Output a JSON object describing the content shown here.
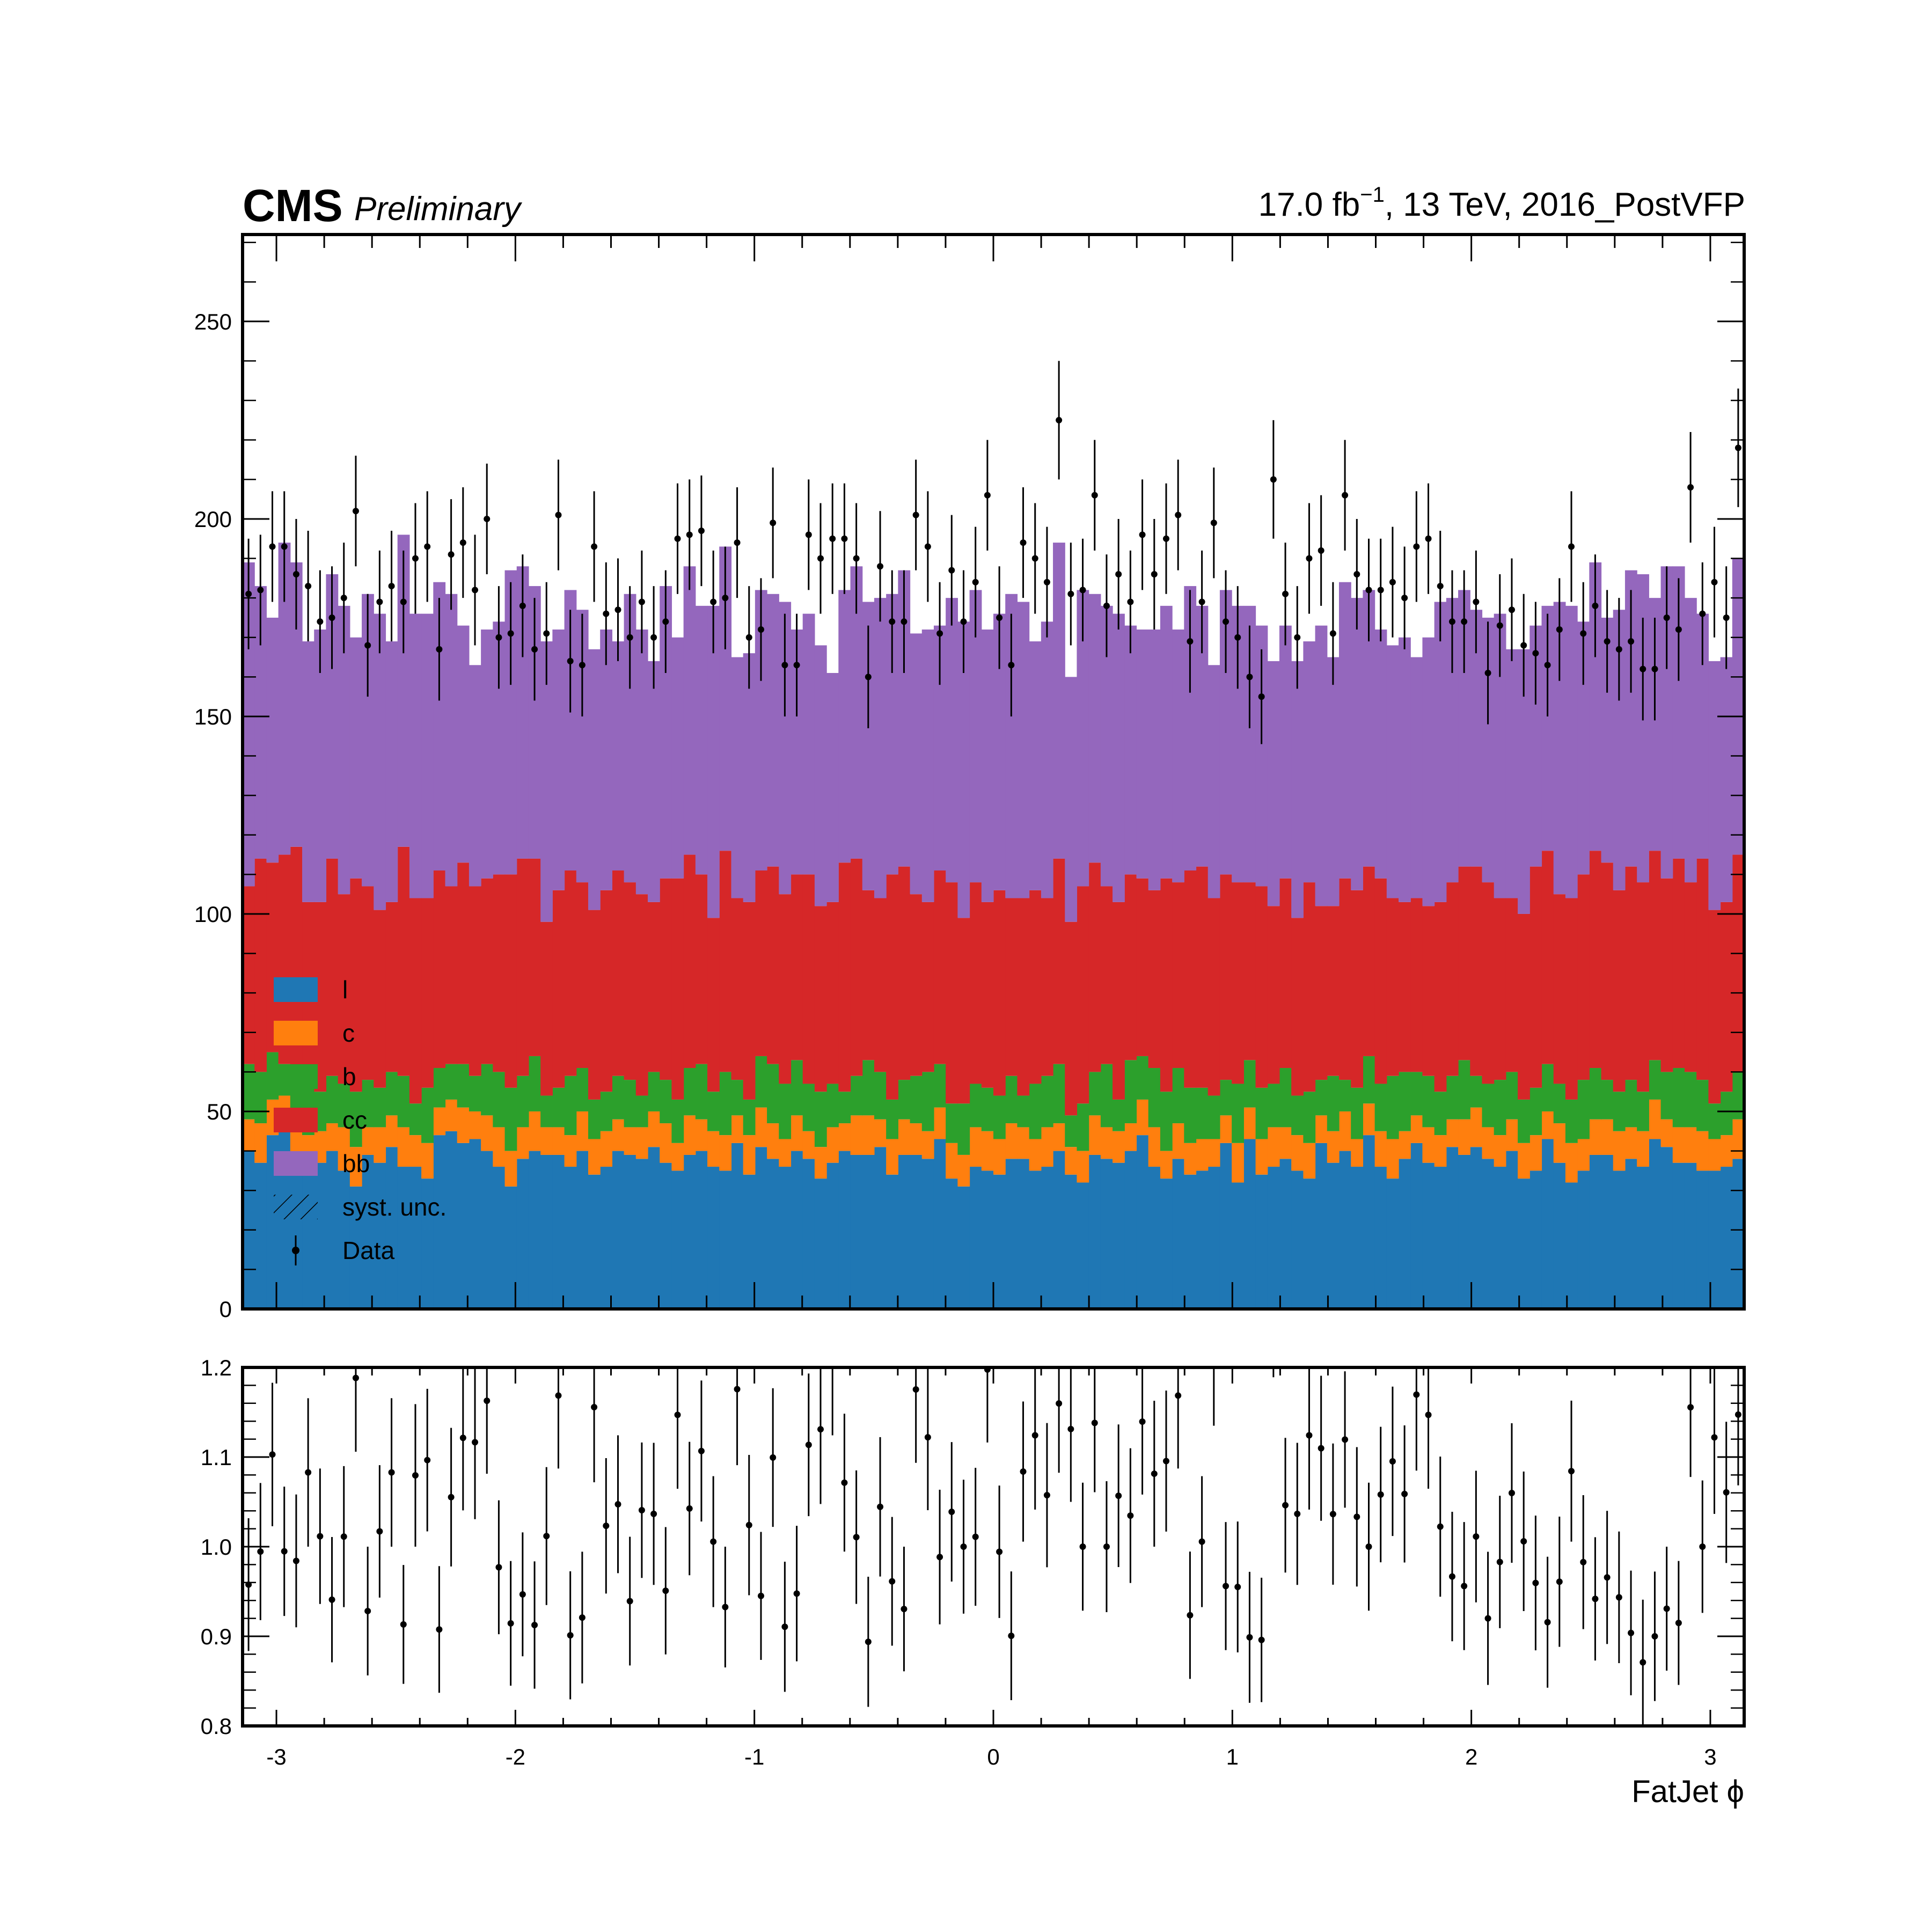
{
  "header": {
    "cms_label": "CMS",
    "preliminary_label": "Preliminary",
    "lumi_prefix": "17.0 fb",
    "lumi_exponent": "−1",
    "lumi_suffix": ", 13 TeV, 2016_PostVFP"
  },
  "chart_data": [
    {
      "type": "bar",
      "stacked": true,
      "panel": "main",
      "xlabel": "FatJet ϕ",
      "ylabel": "",
      "xlim": [
        -3.1416,
        3.1416
      ],
      "ylim": [
        0,
        272
      ],
      "yticks": [
        0,
        50,
        100,
        150,
        200,
        250
      ],
      "yticklabels": [
        "0",
        "50",
        "100",
        "150",
        "200",
        "250"
      ],
      "legend_position": "lower-left",
      "legend": [
        {
          "label": "l",
          "kind": "fill",
          "color": "#1f77b4"
        },
        {
          "label": "c",
          "kind": "fill",
          "color": "#ff7f0e"
        },
        {
          "label": "b",
          "kind": "fill",
          "color": "#2ca02c"
        },
        {
          "label": "cc",
          "kind": "fill",
          "color": "#d62728"
        },
        {
          "label": "bb",
          "kind": "fill",
          "color": "#9467bd"
        },
        {
          "label": "syst. unc.",
          "kind": "hatch",
          "color": "#000000"
        },
        {
          "label": "Data",
          "kind": "errorbar",
          "color": "#000000"
        }
      ],
      "bins": 126,
      "bin_width": 0.04987,
      "series": [
        {
          "name": "l",
          "color": "#1f77b4",
          "values": [
            40,
            37,
            44,
            47,
            39,
            36,
            37,
            40,
            35,
            31,
            39,
            37,
            41,
            36,
            36,
            33,
            44,
            45,
            42,
            43,
            40,
            36,
            31,
            38,
            40,
            39,
            39,
            36,
            40,
            34,
            36,
            40,
            39,
            38,
            41,
            37,
            35,
            39,
            40,
            36,
            35,
            42,
            34,
            41,
            38,
            36,
            40,
            38,
            33,
            37,
            40,
            39,
            39,
            41,
            34,
            39,
            39,
            38,
            43,
            33,
            31,
            36,
            35,
            34,
            38,
            38,
            35,
            36,
            40,
            34,
            32,
            39,
            38,
            37,
            40,
            44,
            36,
            33,
            38,
            34,
            35,
            36,
            42,
            32,
            43,
            34,
            36,
            38,
            35,
            33,
            42,
            37,
            40,
            36,
            44,
            36,
            33,
            38,
            42,
            37,
            36,
            41,
            39,
            41,
            38,
            36,
            40,
            33,
            35,
            43,
            37,
            32,
            35,
            39,
            39,
            35,
            38,
            36,
            43,
            41,
            37,
            37,
            35,
            35,
            36,
            38
          ]
        },
        {
          "name": "c",
          "color": "#ff7f0e",
          "values": [
            8,
            10,
            9,
            7,
            9,
            8,
            8,
            7,
            11,
            10,
            7,
            9,
            8,
            10,
            8,
            9,
            7,
            8,
            9,
            7,
            9,
            10,
            9,
            8,
            10,
            7,
            7,
            8,
            10,
            9,
            9,
            8,
            7,
            8,
            9,
            10,
            7,
            10,
            8,
            9,
            9,
            7,
            10,
            10,
            9,
            7,
            9,
            7,
            8,
            9,
            7,
            10,
            10,
            7,
            9,
            9,
            8,
            7,
            8,
            9,
            8,
            10,
            10,
            9,
            9,
            8,
            8,
            10,
            7,
            7,
            8,
            10,
            8,
            8,
            7,
            9,
            10,
            7,
            9,
            8,
            8,
            7,
            7,
            10,
            8,
            9,
            10,
            8,
            9,
            9,
            7,
            8,
            10,
            7,
            8,
            9,
            10,
            7,
            7,
            9,
            8,
            7,
            9,
            10,
            8,
            8,
            8,
            9,
            9,
            7,
            10,
            10,
            8,
            9,
            9,
            10,
            8,
            9,
            10,
            7,
            9,
            9,
            10,
            8,
            8,
            10
          ]
        },
        {
          "name": "b",
          "color": "#2ca02c",
          "values": [
            14,
            13,
            12,
            8,
            13,
            14,
            10,
            12,
            11,
            14,
            12,
            10,
            11,
            13,
            8,
            14,
            10,
            9,
            11,
            9,
            13,
            14,
            16,
            13,
            14,
            8,
            10,
            15,
            11,
            10,
            10,
            11,
            12,
            8,
            10,
            11,
            11,
            12,
            14,
            10,
            16,
            9,
            9,
            13,
            15,
            14,
            14,
            12,
            14,
            11,
            8,
            10,
            14,
            12,
            10,
            10,
            12,
            15,
            11,
            10,
            13,
            11,
            11,
            11,
            12,
            8,
            14,
            13,
            15,
            8,
            12,
            11,
            16,
            8,
            16,
            11,
            15,
            15,
            14,
            14,
            13,
            11,
            9,
            15,
            12,
            13,
            11,
            15,
            10,
            13,
            9,
            14,
            8,
            13,
            12,
            12,
            16,
            15,
            11,
            13,
            11,
            11,
            15,
            8,
            11,
            14,
            12,
            11,
            12,
            12,
            10,
            11,
            15,
            13,
            10,
            10,
            12,
            10,
            10,
            12,
            15,
            14,
            13,
            9,
            11,
            12
          ]
        },
        {
          "name": "cc",
          "color": "#d62728",
          "values": [
            45,
            54,
            48,
            53,
            56,
            45,
            48,
            55,
            48,
            54,
            49,
            45,
            43,
            58,
            52,
            48,
            50,
            45,
            51,
            48,
            47,
            50,
            54,
            55,
            50,
            44,
            50,
            52,
            47,
            48,
            51,
            52,
            50,
            51,
            43,
            51,
            56,
            54,
            48,
            44,
            56,
            46,
            50,
            47,
            50,
            48,
            47,
            53,
            47,
            46,
            58,
            55,
            43,
            44,
            57,
            54,
            46,
            43,
            49,
            56,
            47,
            51,
            47,
            52,
            45,
            50,
            49,
            45,
            52,
            49,
            55,
            53,
            45,
            50,
            47,
            45,
            45,
            54,
            47,
            55,
            56,
            50,
            52,
            51,
            45,
            51,
            45,
            48,
            45,
            53,
            44,
            43,
            51,
            50,
            48,
            52,
            45,
            43,
            44,
            43,
            48,
            49,
            49,
            53,
            51,
            46,
            44,
            47,
            56,
            54,
            48,
            51,
            52,
            55,
            55,
            51,
            54,
            53,
            53,
            49,
            53,
            48,
            56,
            49,
            48,
            55
          ]
        },
        {
          "name": "bb",
          "color": "#9467bd",
          "values": [
            82,
            69,
            62,
            79,
            72,
            66,
            69,
            72,
            73,
            61,
            74,
            75,
            66,
            79,
            72,
            72,
            73,
            74,
            60,
            56,
            63,
            64,
            77,
            74,
            69,
            71,
            66,
            71,
            69,
            66,
            66,
            58,
            73,
            67,
            61,
            74,
            61,
            73,
            68,
            79,
            77,
            61,
            63,
            71,
            69,
            74,
            62,
            66,
            66,
            58,
            69,
            74,
            73,
            76,
            71,
            75,
            66,
            69,
            62,
            72,
            75,
            74,
            69,
            70,
            77,
            75,
            63,
            70,
            80,
            62,
            75,
            68,
            71,
            73,
            63,
            63,
            66,
            69,
            64,
            72,
            66,
            59,
            72,
            70,
            70,
            66,
            62,
            64,
            65,
            61,
            71,
            63,
            75,
            74,
            70,
            63,
            64,
            67,
            61,
            68,
            76,
            72,
            70,
            65,
            67,
            72,
            63,
            67,
            61,
            62,
            74,
            74,
            64,
            73,
            62,
            71,
            75,
            78,
            64,
            79,
            74,
            72,
            62,
            63,
            62,
            75
          ]
        }
      ],
      "data_points": {
        "label": "Data",
        "values": [
          181,
          182,
          193,
          193,
          186,
          183,
          174,
          175,
          180,
          202,
          168,
          179,
          183,
          179,
          190,
          193,
          167,
          191,
          194,
          182,
          200,
          170,
          171,
          178,
          167,
          171,
          201,
          164,
          163,
          193,
          176,
          177,
          170,
          179,
          170,
          174,
          195,
          196,
          197,
          179,
          180,
          194,
          170,
          172,
          199,
          163,
          163,
          196,
          190,
          195,
          195,
          190,
          160,
          188,
          174,
          174,
          201,
          193,
          171,
          187,
          174,
          184,
          206,
          175,
          163,
          194,
          190,
          184,
          225,
          181,
          182,
          206,
          178,
          186,
          179,
          196,
          186,
          195,
          201,
          169,
          179,
          199,
          174,
          170,
          160,
          155,
          210,
          181,
          170,
          190,
          192,
          171,
          206,
          186,
          182,
          182,
          184,
          180,
          193,
          195,
          183,
          174,
          174,
          179,
          161,
          173,
          177,
          168,
          166,
          163,
          172,
          193,
          171,
          178,
          169,
          167,
          169,
          162,
          162,
          175,
          172,
          208,
          176,
          184,
          175,
          218
        ]
      },
      "data_errors": {
        "values": [
          14,
          14,
          14,
          14,
          14,
          14,
          13,
          13,
          14,
          14,
          13,
          13,
          14,
          13,
          14,
          14,
          13,
          14,
          14,
          14,
          14,
          13,
          13,
          13,
          13,
          13,
          14,
          13,
          13,
          14,
          13,
          13,
          13,
          13,
          13,
          13,
          14,
          14,
          14,
          13,
          13,
          14,
          13,
          13,
          14,
          13,
          13,
          14,
          14,
          14,
          14,
          14,
          13,
          14,
          13,
          13,
          14,
          14,
          13,
          14,
          13,
          14,
          14,
          13,
          13,
          14,
          14,
          14,
          15,
          13,
          13,
          14,
          13,
          14,
          13,
          14,
          14,
          14,
          14,
          13,
          13,
          14,
          13,
          13,
          13,
          12,
          15,
          13,
          13,
          14,
          14,
          13,
          14,
          14,
          13,
          13,
          14,
          13,
          14,
          14,
          14,
          13,
          13,
          13,
          13,
          13,
          13,
          13,
          13,
          13,
          13,
          14,
          13,
          13,
          13,
          13,
          13,
          13,
          13,
          13,
          13,
          14,
          13,
          14,
          13,
          15
        ]
      }
    },
    {
      "type": "scatter",
      "panel": "ratio",
      "xlabel": "FatJet ϕ",
      "ylabel": "",
      "xlim": [
        -3.1416,
        3.1416
      ],
      "ylim": [
        0.8,
        1.2
      ],
      "yticks": [
        0.8,
        0.9,
        1.0,
        1.1,
        1.2
      ],
      "yticklabels": [
        "0.8",
        "0.9",
        "1.0",
        "1.1",
        "1.2"
      ],
      "xticks": [
        -3,
        -2,
        -1,
        0,
        1,
        2,
        3
      ],
      "xticklabels": [
        "-3",
        "-2",
        "-1",
        "0",
        "1",
        "2",
        "3"
      ]
    }
  ]
}
